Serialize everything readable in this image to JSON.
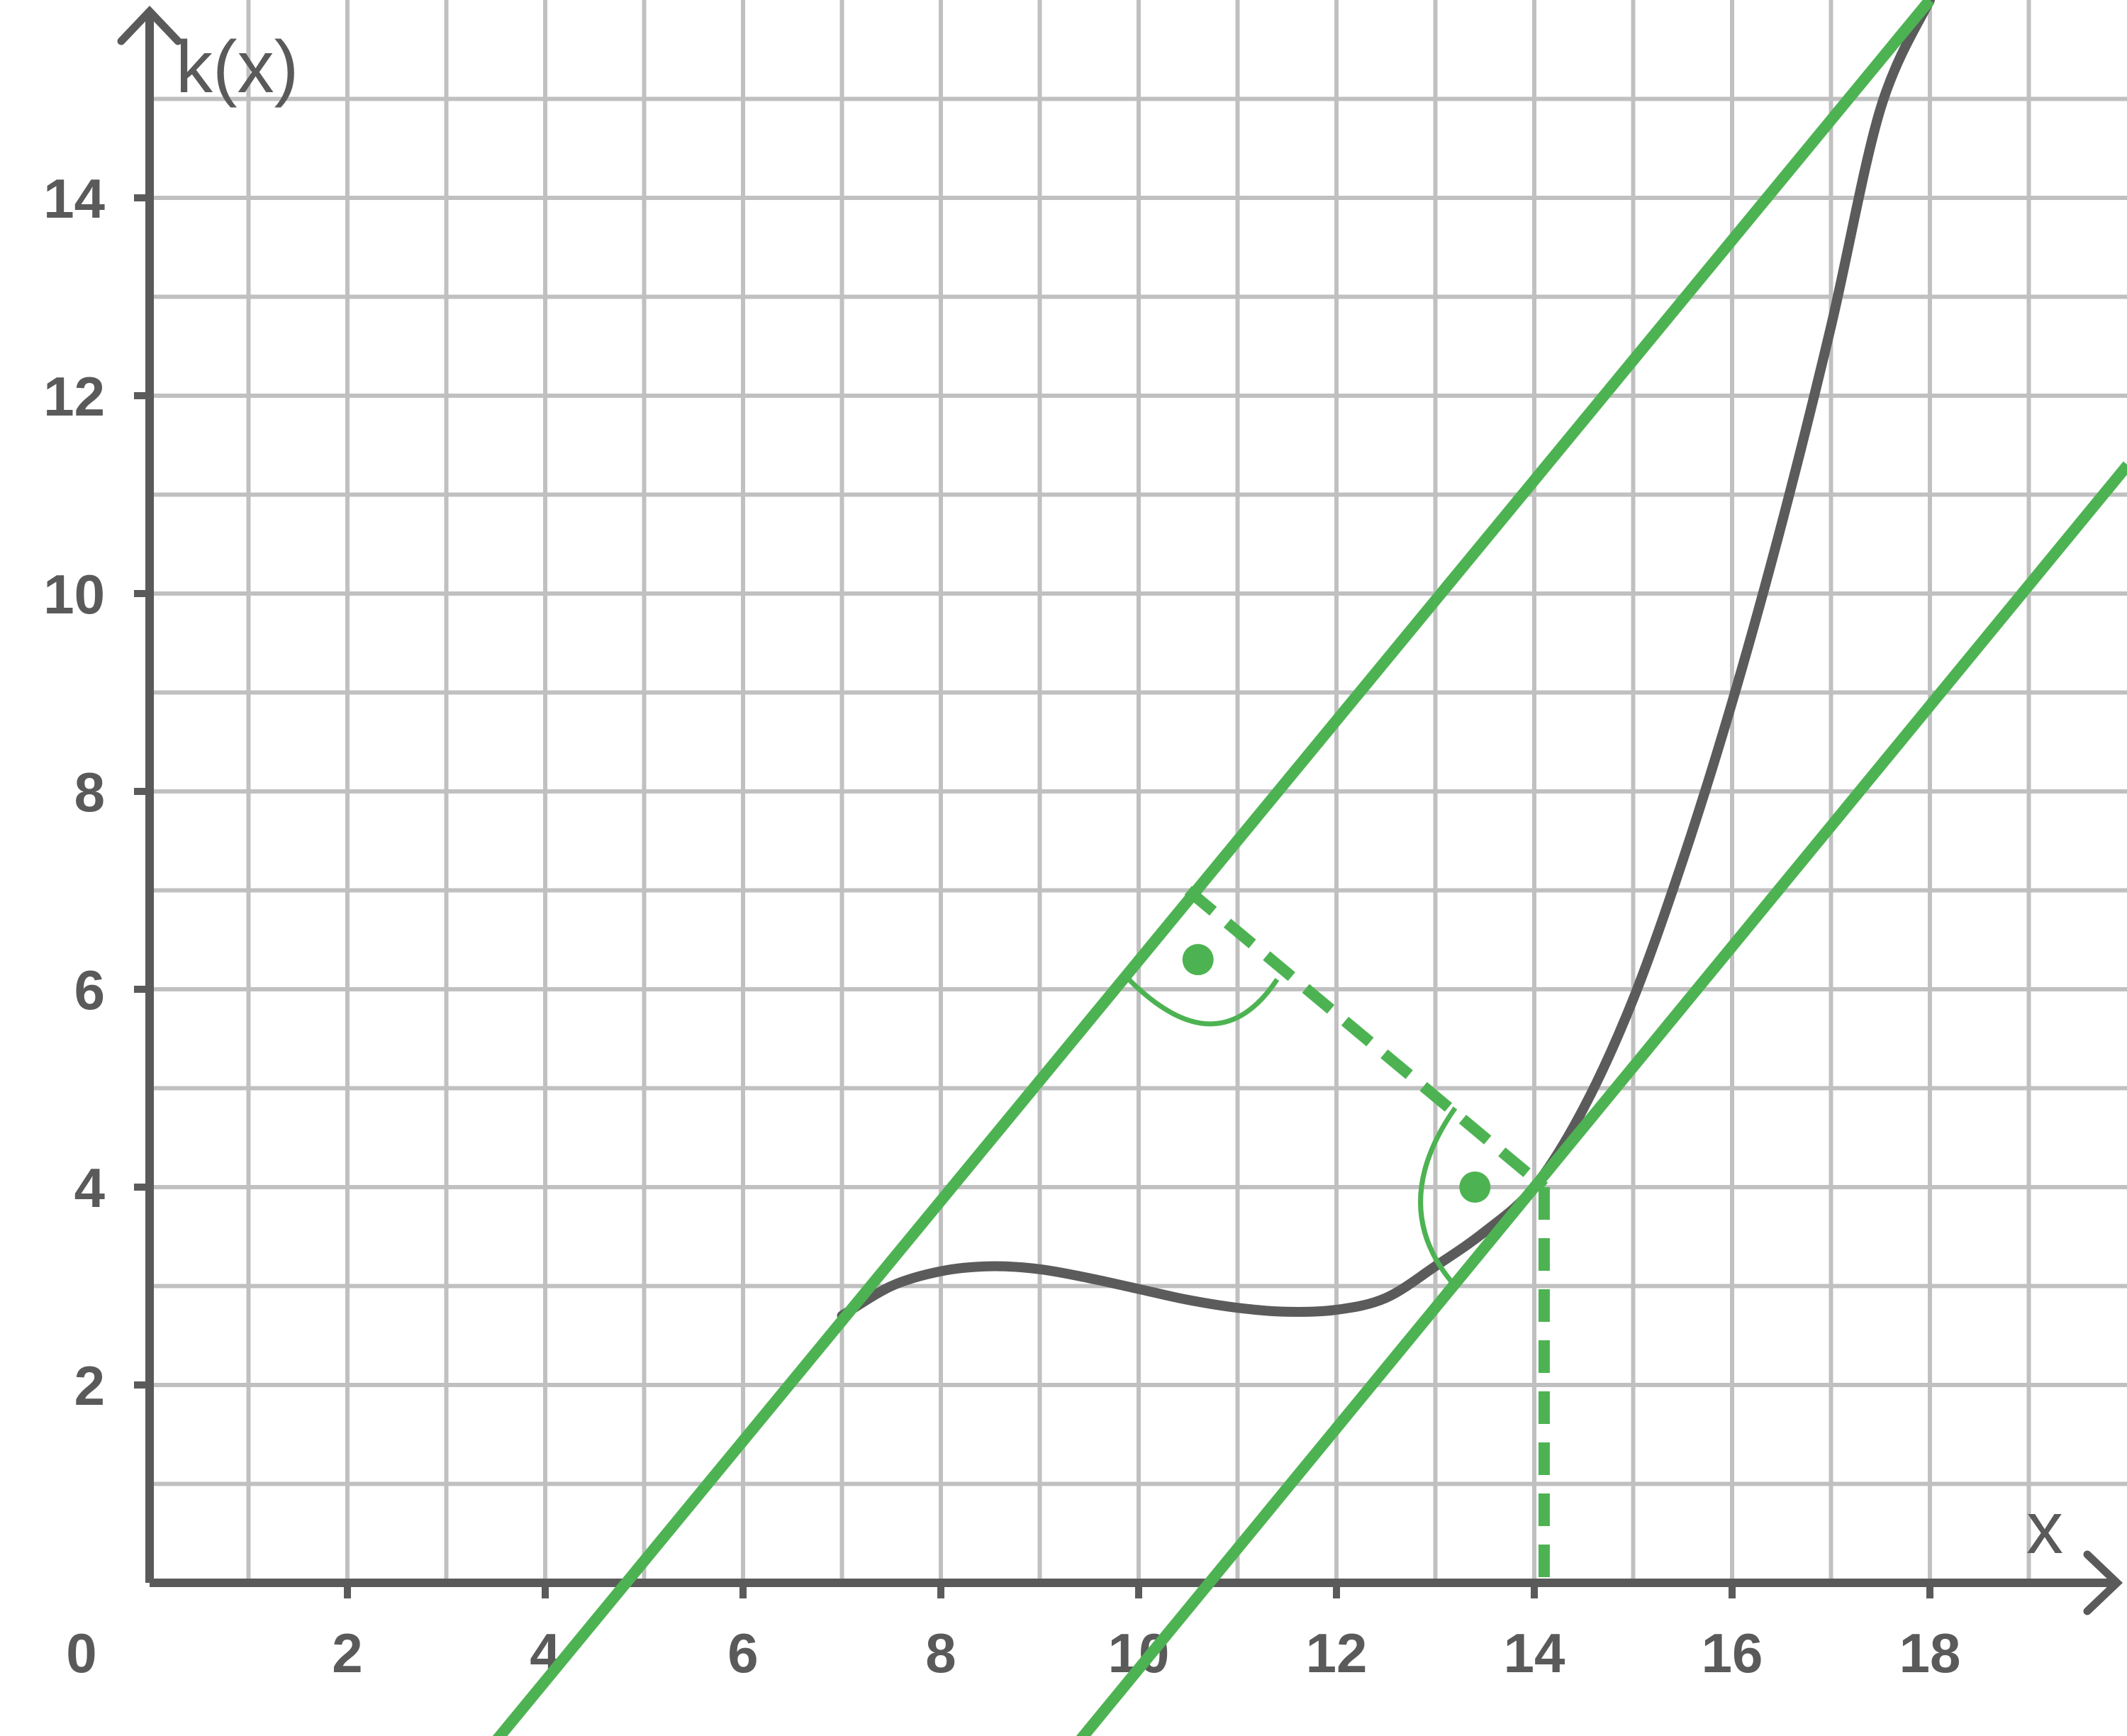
{
  "chart_data": {
    "type": "line",
    "title": "",
    "xlabel": "x",
    "ylabel": "k(x)",
    "origin_label": "0",
    "xlim": [
      0,
      20
    ],
    "ylim": [
      0,
      16
    ],
    "x_ticks": [
      2,
      4,
      6,
      8,
      10,
      12,
      14,
      16,
      18
    ],
    "y_ticks": [
      2,
      4,
      6,
      8,
      10,
      12,
      14
    ],
    "grid": true,
    "grid_step": 1,
    "colors": {
      "curve": "#5b5b5b",
      "lines": "#4db352",
      "grid": "#c0c0c0",
      "axis": "#5a5a5a"
    },
    "series": [
      {
        "x": [
          7,
          7.5,
          8,
          8.5,
          9,
          9.5,
          10,
          10.5,
          11,
          11.5,
          12,
          12.5,
          13,
          13.5,
          14,
          14.5,
          15,
          15.5,
          16,
          16.5,
          17,
          17.5,
          18
        ],
        "y": [
          2.7,
          3.0,
          3.15,
          3.2,
          3.17,
          3.08,
          2.97,
          2.86,
          2.78,
          2.74,
          2.76,
          2.88,
          3.2,
          3.55,
          4.0,
          4.8,
          5.9,
          7.3,
          8.9,
          10.7,
          12.7,
          14.9,
          16.0
        ]
      },
      {
        "x": [
          3.5,
          18
        ],
        "y": [
          -1.6,
          16
        ]
      },
      {
        "x": [
          9.4,
          20
        ],
        "y": [
          -1.6,
          11.3
        ]
      },
      {
        "x": [
          10.5,
          14.1
        ],
        "y": [
          7.0,
          4.0
        ]
      },
      {
        "x": [
          14.1,
          14.1
        ],
        "y": [
          4.0,
          0
        ]
      }
    ],
    "annotations": [
      {
        "type": "right-angle",
        "x": 10.6,
        "y": 6.3
      },
      {
        "type": "right-angle",
        "x": 13.4,
        "y": 4.0
      }
    ]
  }
}
